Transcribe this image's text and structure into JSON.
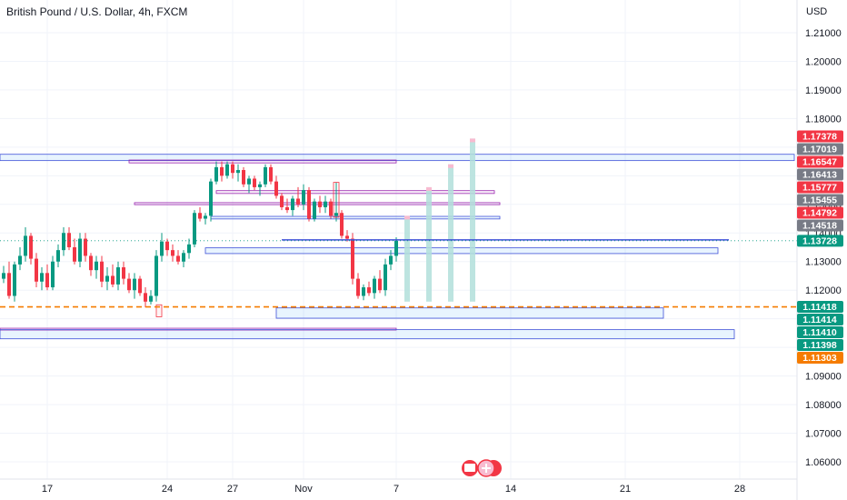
{
  "chart_data": {
    "type": "candlestick",
    "title": "British Pound / U.S. Dollar, 4h, FXCM",
    "currency": "USD",
    "y_ticks": [
      1.06,
      1.07,
      1.08,
      1.09,
      1.1,
      1.11,
      1.12,
      1.13,
      1.14,
      1.15,
      1.16,
      1.17,
      1.18,
      1.19,
      1.2,
      1.21
    ],
    "y_tick_labels": [
      "1.06000",
      "1.07000",
      "1.08000",
      "1.09000",
      "1.10000",
      "1.11000",
      "1.12000",
      "1.13000",
      "1.14000",
      "1.15000",
      "1.16000",
      "1.17000",
      "1.18000",
      "1.19000",
      "1.20000",
      "1.21000"
    ],
    "x_ticks": [
      {
        "label": "17",
        "index": 8
      },
      {
        "label": "24",
        "index": 30
      },
      {
        "label": "27",
        "index": 42
      },
      {
        "label": "Nov",
        "index": 55
      },
      {
        "label": "7",
        "index": 72
      },
      {
        "label": "14",
        "index": 93
      },
      {
        "label": "21",
        "index": 114
      },
      {
        "label": "28",
        "index": 135
      }
    ],
    "candles": [
      [
        1.124,
        1.1285,
        1.1225,
        1.126
      ],
      [
        1.126,
        1.13,
        1.117,
        1.118
      ],
      [
        1.118,
        1.13,
        1.116,
        1.129
      ],
      [
        1.129,
        1.135,
        1.127,
        1.132
      ],
      [
        1.132,
        1.142,
        1.13,
        1.139
      ],
      [
        1.139,
        1.14,
        1.129,
        1.131
      ],
      [
        1.131,
        1.133,
        1.121,
        1.123
      ],
      [
        1.123,
        1.128,
        1.12,
        1.126
      ],
      [
        1.126,
        1.129,
        1.12,
        1.121
      ],
      [
        1.121,
        1.132,
        1.12,
        1.13
      ],
      [
        1.13,
        1.136,
        1.128,
        1.134
      ],
      [
        1.134,
        1.142,
        1.132,
        1.14
      ],
      [
        1.14,
        1.142,
        1.134,
        1.135
      ],
      [
        1.135,
        1.138,
        1.129,
        1.13
      ],
      [
        1.13,
        1.14,
        1.128,
        1.138
      ],
      [
        1.138,
        1.14,
        1.13,
        1.132
      ],
      [
        1.132,
        1.133,
        1.125,
        1.127
      ],
      [
        1.127,
        1.132,
        1.124,
        1.13
      ],
      [
        1.13,
        1.132,
        1.121,
        1.123
      ],
      [
        1.123,
        1.128,
        1.12,
        1.125
      ],
      [
        1.125,
        1.129,
        1.121,
        1.122
      ],
      [
        1.122,
        1.13,
        1.12,
        1.128
      ],
      [
        1.128,
        1.13,
        1.122,
        1.124
      ],
      [
        1.124,
        1.126,
        1.119,
        1.12
      ],
      [
        1.12,
        1.126,
        1.117,
        1.124
      ],
      [
        1.124,
        1.125,
        1.118,
        1.119
      ],
      [
        1.119,
        1.121,
        1.114,
        1.116
      ],
      [
        1.116,
        1.12,
        1.115,
        1.118
      ],
      [
        1.118,
        1.134,
        1.116,
        1.132
      ],
      [
        1.132,
        1.14,
        1.13,
        1.137
      ],
      [
        1.137,
        1.138,
        1.132,
        1.134
      ],
      [
        1.134,
        1.136,
        1.13,
        1.132
      ],
      [
        1.132,
        1.134,
        1.129,
        1.13
      ],
      [
        1.13,
        1.134,
        1.128,
        1.133
      ],
      [
        1.133,
        1.138,
        1.131,
        1.136
      ],
      [
        1.136,
        1.148,
        1.135,
        1.147
      ],
      [
        1.147,
        1.149,
        1.144,
        1.145
      ],
      [
        1.145,
        1.147,
        1.143,
        1.146
      ],
      [
        1.146,
        1.159,
        1.144,
        1.158
      ],
      [
        1.158,
        1.165,
        1.157,
        1.163
      ],
      [
        1.163,
        1.165,
        1.158,
        1.16
      ],
      [
        1.16,
        1.165,
        1.159,
        1.164
      ],
      [
        1.164,
        1.165,
        1.159,
        1.161
      ],
      [
        1.161,
        1.164,
        1.158,
        1.162
      ],
      [
        1.162,
        1.163,
        1.156,
        1.157
      ],
      [
        1.157,
        1.16,
        1.154,
        1.159
      ],
      [
        1.159,
        1.16,
        1.155,
        1.156
      ],
      [
        1.156,
        1.158,
        1.153,
        1.157
      ],
      [
        1.157,
        1.164,
        1.156,
        1.163
      ],
      [
        1.163,
        1.164,
        1.157,
        1.158
      ],
      [
        1.158,
        1.16,
        1.152,
        1.153
      ],
      [
        1.153,
        1.154,
        1.148,
        1.149
      ],
      [
        1.149,
        1.152,
        1.147,
        1.148
      ],
      [
        1.148,
        1.153,
        1.146,
        1.152
      ],
      [
        1.152,
        1.156,
        1.149,
        1.15
      ],
      [
        1.15,
        1.157,
        1.148,
        1.155
      ],
      [
        1.155,
        1.156,
        1.144,
        1.145
      ],
      [
        1.145,
        1.152,
        1.144,
        1.151
      ],
      [
        1.151,
        1.153,
        1.147,
        1.149
      ],
      [
        1.149,
        1.153,
        1.147,
        1.151
      ],
      [
        1.151,
        1.152,
        1.145,
        1.146
      ],
      [
        1.146,
        1.1577,
        1.144,
        1.147
      ],
      [
        1.147,
        1.148,
        1.138,
        1.139
      ],
      [
        1.139,
        1.141,
        1.137,
        1.138
      ],
      [
        1.138,
        1.14,
        1.122,
        1.124
      ],
      [
        1.124,
        1.126,
        1.117,
        1.118
      ],
      [
        1.118,
        1.122,
        1.1165,
        1.121
      ],
      [
        1.121,
        1.123,
        1.118,
        1.119
      ],
      [
        1.119,
        1.125,
        1.117,
        1.124
      ],
      [
        1.124,
        1.127,
        1.119,
        1.12
      ],
      [
        1.12,
        1.131,
        1.118,
        1.129
      ],
      [
        1.129,
        1.134,
        1.127,
        1.132
      ],
      [
        1.132,
        1.1385,
        1.13,
        1.13728
      ]
    ],
    "current_price": 1.13728,
    "dashed_level": 1.11418,
    "zones": [
      {
        "from_index": -6,
        "to_index": 145,
        "high": 1.1675,
        "low": 1.1653,
        "color": "blue"
      },
      {
        "from_index": 23,
        "to_index": 72,
        "high": 1.1655,
        "low": 1.1645,
        "color": "purple"
      },
      {
        "from_index": 24,
        "to_index": 91,
        "high": 1.1506,
        "low": 1.1499,
        "color": "purple"
      },
      {
        "from_index": 39,
        "to_index": 90,
        "high": 1.1548,
        "low": 1.1538,
        "color": "purple"
      },
      {
        "from_index": 38,
        "to_index": 91,
        "high": 1.1458,
        "low": 1.1449,
        "color": "blue"
      },
      {
        "from_index": 37,
        "to_index": 131,
        "high": 1.1348,
        "low": 1.1328,
        "color": "blue"
      },
      {
        "from_index": 50,
        "to_index": 121,
        "high": 1.1138,
        "low": 1.1102,
        "color": "blue"
      },
      {
        "from_index": -6,
        "to_index": 72,
        "high": 1.1067,
        "low": 1.1062,
        "color": "purple"
      },
      {
        "from_index": -6,
        "to_index": 134,
        "high": 1.1062,
        "low": 1.103,
        "color": "blue"
      },
      {
        "from_index": 28,
        "to_index": 29,
        "high": 1.1149,
        "low": 1.1107,
        "color": "red"
      }
    ],
    "red_box": {
      "index": 61,
      "high": 1.1577,
      "low": 1.1455
    },
    "horizontal_line": {
      "from_index": 51,
      "to_index": 133,
      "value": 1.13758
    },
    "projections": [
      {
        "index": 74,
        "high": 1.146,
        "low": 1.116
      },
      {
        "index": 78,
        "high": 1.156,
        "low": 1.116
      },
      {
        "index": 82,
        "high": 1.164,
        "low": 1.116
      },
      {
        "index": 86,
        "high": 1.173,
        "low": 1.116
      }
    ],
    "price_badges": [
      {
        "value": 1.17378,
        "label": "1.17378",
        "color": "#f23645"
      },
      {
        "value": 1.17019,
        "label": "1.17019",
        "color": "#787b86"
      },
      {
        "value": 1.16547,
        "label": "1.16547",
        "color": "#f23645"
      },
      {
        "value": 1.16413,
        "label": "1.16413",
        "color": "#787b86"
      },
      {
        "value": 1.15777,
        "label": "1.15777",
        "color": "#f23645"
      },
      {
        "value": 1.15455,
        "label": "1.15455",
        "color": "#787b86"
      },
      {
        "value": 1.14792,
        "label": "1.14792",
        "color": "#f23645"
      },
      {
        "value": 1.14518,
        "label": "1.14518",
        "color": "#787b86"
      },
      {
        "value": 1.13728,
        "label": "1.13728",
        "color": "#089981"
      },
      {
        "value": 1.11418,
        "label": "1.11418",
        "color": "#089981"
      },
      {
        "value": 1.11414,
        "label": "1.11414",
        "color": "#089981"
      },
      {
        "value": 1.1141,
        "label": "1.11410",
        "color": "#089981"
      },
      {
        "value": 1.11398,
        "label": "1.11398",
        "color": "#089981"
      },
      {
        "value": 1.11303,
        "label": "1.11303",
        "color": "#f57c00"
      }
    ],
    "colors": {
      "up": "#089981",
      "down": "#f23645",
      "zone_blue": "#3f51d8",
      "zone_purple": "#9c27b0",
      "dashed": "#f57c00",
      "projection": "#b2dfdb"
    }
  }
}
